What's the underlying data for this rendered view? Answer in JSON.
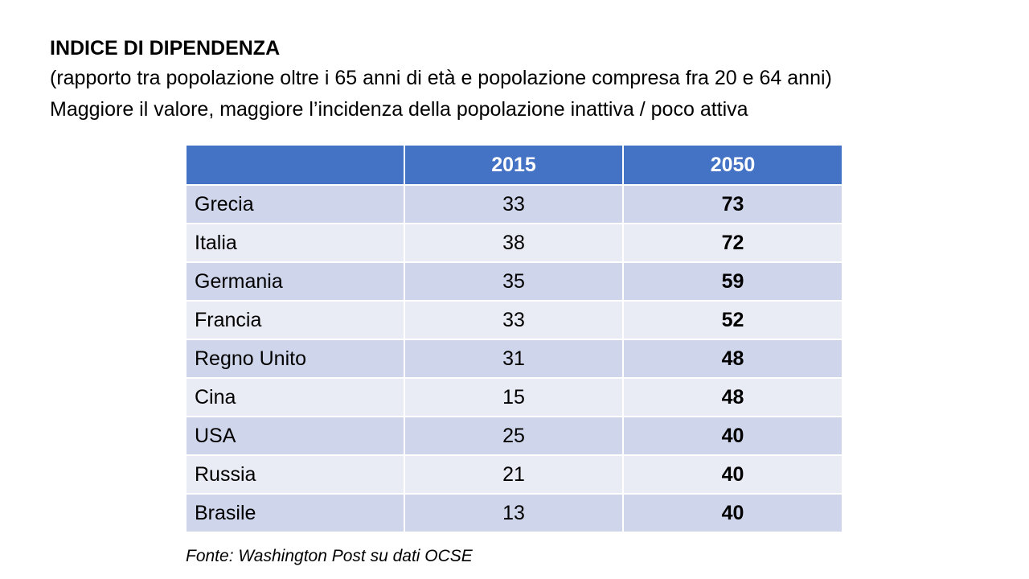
{
  "header": {
    "title": "INDICE DI DIPENDENZA",
    "subtitle_line1": "(rapporto tra popolazione oltre i 65 anni di età e popolazione compresa fra 20 e 64 anni)",
    "subtitle_line2": "Maggiore il valore, maggiore l’incidenza della popolazione inattiva / poco attiva"
  },
  "table": {
    "columns": [
      "",
      "2015",
      "2050"
    ],
    "rows": [
      {
        "country": "Grecia",
        "y2015": "33",
        "y2050": "73"
      },
      {
        "country": "Italia",
        "y2015": "38",
        "y2050": "72"
      },
      {
        "country": "Germania",
        "y2015": "35",
        "y2050": "59"
      },
      {
        "country": "Francia",
        "y2015": "33",
        "y2050": "52"
      },
      {
        "country": "Regno Unito",
        "y2015": "31",
        "y2050": "48"
      },
      {
        "country": "Cina",
        "y2015": "15",
        "y2050": "48"
      },
      {
        "country": "USA",
        "y2015": "25",
        "y2050": "40"
      },
      {
        "country": "Russia",
        "y2015": "21",
        "y2050": "40"
      },
      {
        "country": "Brasile",
        "y2015": "13",
        "y2050": "40"
      }
    ]
  },
  "footer": {
    "source": "Fonte: Washington Post su dati OCSE"
  },
  "colors": {
    "header_fill": "#4472c4",
    "row_dark": "#cfd5ea",
    "row_light": "#e9ebf5",
    "header_text": "#ffffff"
  }
}
